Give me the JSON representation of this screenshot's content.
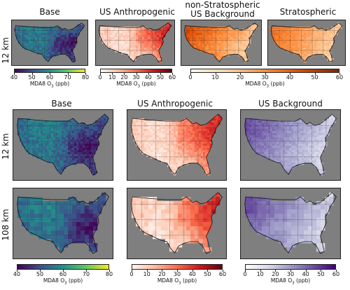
{
  "top_row": {
    "row_label": "12 km",
    "panels": [
      {
        "title": "Base",
        "colormap": "viridis"
      },
      {
        "title": "US Anthropogenic",
        "colormap": "reds"
      },
      {
        "title_line1": "non-Stratospheric",
        "title_line2": "US Background",
        "colormap": "oranges"
      },
      {
        "title": "Stratospheric",
        "colormap": "oranges"
      }
    ],
    "colorbars": [
      {
        "ticks": [
          "40",
          "50",
          "60",
          "70",
          "80"
        ],
        "label": "MDA8 O",
        "label_sub": "3",
        "label_unit": " (ppb)"
      },
      {
        "ticks": [
          "0",
          "10",
          "20",
          "30",
          "40",
          "50",
          "60"
        ],
        "label": "MDA8 O",
        "label_sub": "3",
        "label_unit": " (ppb)"
      },
      {
        "ticks": [
          "0",
          "10",
          "20",
          "30",
          "40",
          "50",
          "60"
        ],
        "label": "MDA8 O",
        "label_sub": "3",
        "label_unit": " (ppb)"
      }
    ]
  },
  "bottom_block": {
    "column_titles": [
      "Base",
      "US Anthropogenic",
      "US Background"
    ],
    "row_labels": [
      "12 km",
      "108 km"
    ],
    "colorbars": [
      {
        "ticks": [
          "40",
          "50",
          "60",
          "70",
          "80"
        ],
        "label": "MDA8 O",
        "label_sub": "3",
        "label_unit": " (ppb)"
      },
      {
        "ticks": [
          "0",
          "10",
          "20",
          "30",
          "40",
          "50",
          "60"
        ],
        "label": "MDA8 O",
        "label_sub": "3",
        "label_unit": " (ppb)"
      },
      {
        "ticks": [
          "0",
          "10",
          "20",
          "30",
          "40",
          "50",
          "60"
        ],
        "label": "MDA8 O",
        "label_sub": "3",
        "label_unit": " (ppb)"
      }
    ]
  },
  "chart_data": [
    {
      "type": "heatmap",
      "title": "Base",
      "grid_resolution": "12 km",
      "colorbar_range": [
        40,
        80
      ],
      "colorbar_label": "MDA8 O3 (ppb)",
      "colormap": "viridis"
    },
    {
      "type": "heatmap",
      "title": "US Anthropogenic",
      "grid_resolution": "12 km",
      "colorbar_range": [
        0,
        60
      ],
      "colorbar_label": "MDA8 O3 (ppb)",
      "colormap": "reds"
    },
    {
      "type": "heatmap",
      "title": "non-Stratospheric US Background",
      "grid_resolution": "12 km",
      "colorbar_range": [
        0,
        60
      ],
      "colorbar_label": "MDA8 O3 (ppb)",
      "colormap": "oranges"
    },
    {
      "type": "heatmap",
      "title": "Stratospheric",
      "grid_resolution": "12 km",
      "colorbar_range": [
        0,
        60
      ],
      "colorbar_label": "MDA8 O3 (ppb)",
      "colormap": "oranges"
    },
    {
      "type": "heatmap",
      "title": "Base",
      "grid_resolution": "12 km",
      "colorbar_range": [
        40,
        80
      ],
      "colorbar_label": "MDA8 O3 (ppb)",
      "colormap": "viridis"
    },
    {
      "type": "heatmap",
      "title": "US Anthropogenic",
      "grid_resolution": "12 km",
      "colorbar_range": [
        0,
        60
      ],
      "colorbar_label": "MDA8 O3 (ppb)",
      "colormap": "reds"
    },
    {
      "type": "heatmap",
      "title": "US Background",
      "grid_resolution": "12 km",
      "colorbar_range": [
        0,
        60
      ],
      "colorbar_label": "MDA8 O3 (ppb)",
      "colormap": "purples"
    },
    {
      "type": "heatmap",
      "title": "Base",
      "grid_resolution": "108 km",
      "colorbar_range": [
        40,
        80
      ],
      "colorbar_label": "MDA8 O3 (ppb)",
      "colormap": "viridis"
    },
    {
      "type": "heatmap",
      "title": "US Anthropogenic",
      "grid_resolution": "108 km",
      "colorbar_range": [
        0,
        60
      ],
      "colorbar_label": "MDA8 O3 (ppb)",
      "colormap": "reds"
    },
    {
      "type": "heatmap",
      "title": "US Background",
      "grid_resolution": "108 km",
      "colorbar_range": [
        0,
        60
      ],
      "colorbar_label": "MDA8 O3 (ppb)",
      "colormap": "purples"
    }
  ],
  "colors": {
    "ocean": "#7f7f7f",
    "viridis": [
      "#440154",
      "#3b528b",
      "#21918c",
      "#5ec962",
      "#fde725"
    ],
    "reds": [
      "#fff5f0",
      "#fcbba1",
      "#fb6a4a",
      "#cb181d",
      "#67000d"
    ],
    "oranges": [
      "#fff5eb",
      "#fdd0a2",
      "#fd8d3c",
      "#d94801",
      "#7f2704"
    ],
    "purples": [
      "#fcfbfd",
      "#dadaeb",
      "#9e9ac8",
      "#6a51a3",
      "#3f007d"
    ]
  }
}
